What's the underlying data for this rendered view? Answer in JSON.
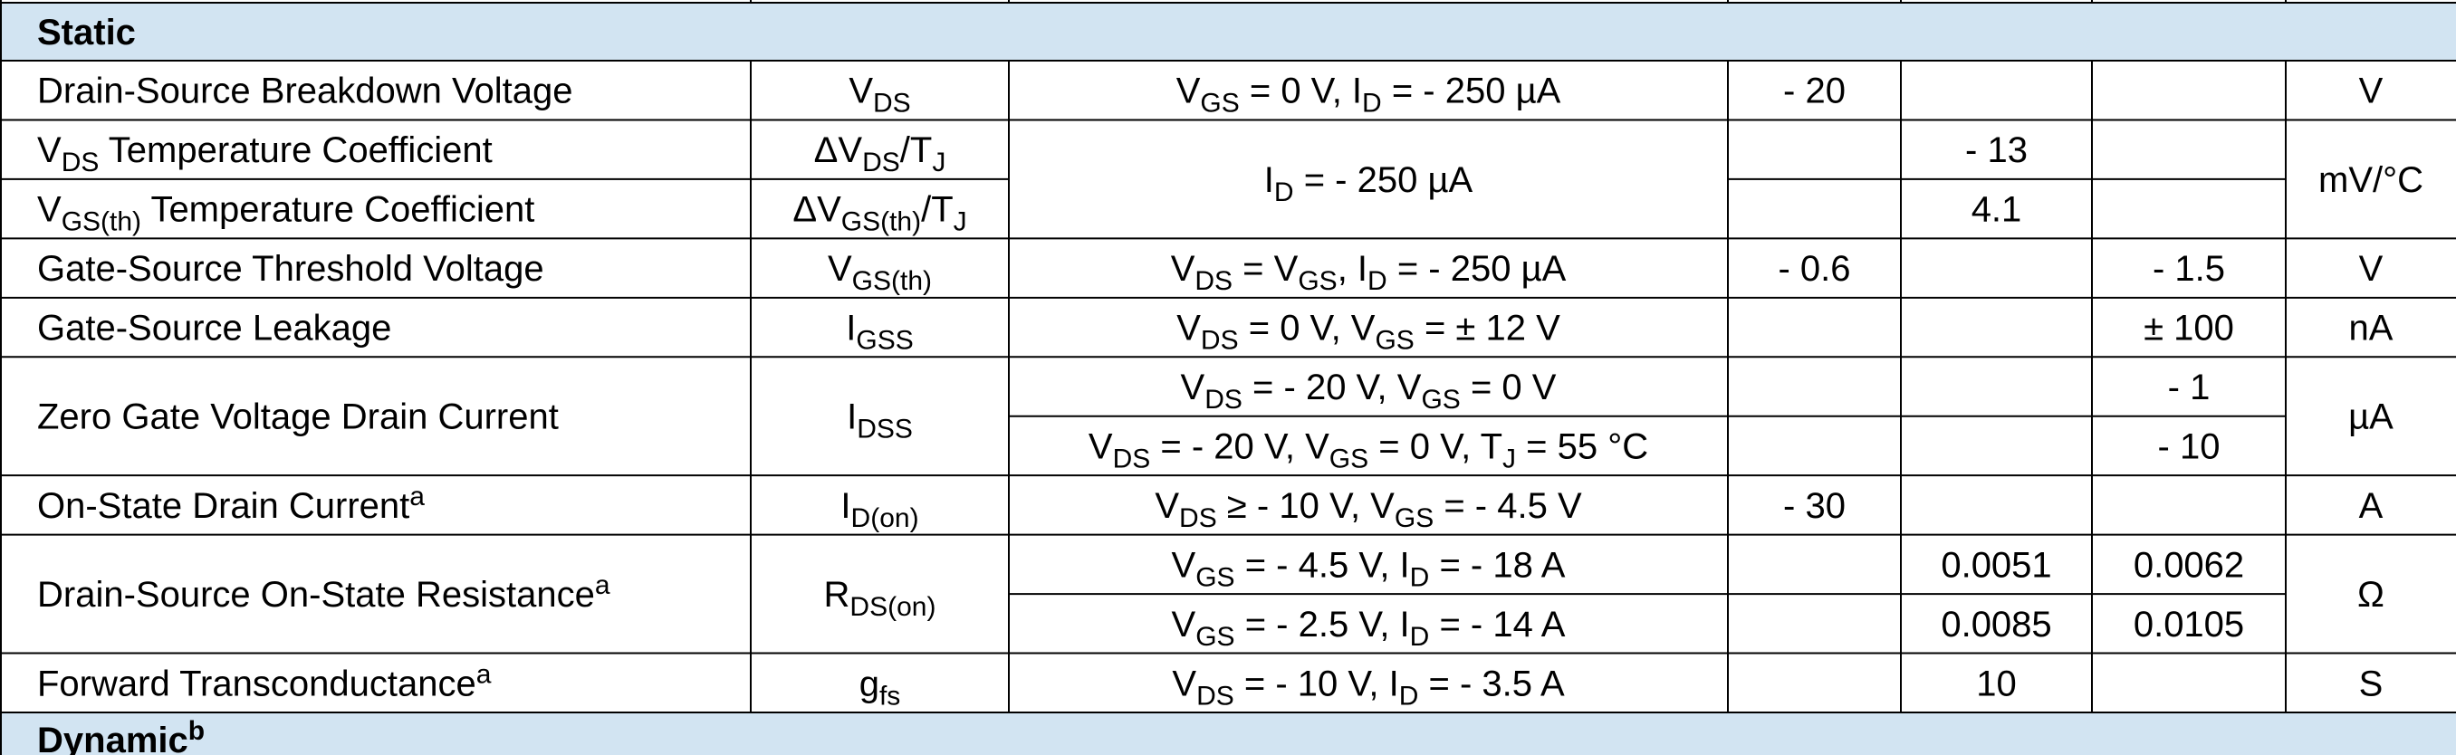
{
  "table": {
    "top_section": [
      "Static"
    ],
    "groups": [
      {
        "parameter": [
          [
            "Drain-Source Breakdown Voltage"
          ]
        ],
        "symbol": [
          [
            "V",
            {
              "sub": "DS"
            }
          ]
        ],
        "conditions": [
          [
            "V",
            {
              "sub": "GS"
            },
            " = 0 V, I",
            {
              "sub": "D"
            },
            " = - 250 µA"
          ]
        ],
        "min": [
          [
            "- 20"
          ]
        ],
        "typ": [
          null
        ],
        "max": [
          null
        ],
        "unit": [
          [
            "V"
          ]
        ]
      },
      {
        "parameter": [
          [
            "V",
            {
              "sub": "DS"
            },
            " Temperature Coefficient"
          ],
          [
            "V",
            {
              "sub": "GS(th)"
            },
            " Temperature Coefficient"
          ]
        ],
        "symbol": [
          [
            "ΔV",
            {
              "sub": "DS"
            },
            "/T",
            {
              "sub": "J"
            }
          ],
          [
            "ΔV",
            {
              "sub": "GS(th)"
            },
            "/T",
            {
              "sub": "J"
            }
          ]
        ],
        "conditions": [
          [
            "I",
            {
              "sub": "D"
            },
            " = - 250 µA"
          ]
        ],
        "min": [
          null,
          null
        ],
        "typ": [
          [
            "- 13"
          ],
          [
            "4.1"
          ]
        ],
        "max": [
          null,
          null
        ],
        "unit": [
          [
            "mV/°C"
          ]
        ]
      },
      {
        "parameter": [
          [
            "Gate-Source Threshold Voltage"
          ]
        ],
        "symbol": [
          [
            "V",
            {
              "sub": "GS(th)"
            }
          ]
        ],
        "conditions": [
          [
            "V",
            {
              "sub": "DS"
            },
            " = V",
            {
              "sub": "GS"
            },
            ", I",
            {
              "sub": "D"
            },
            " = - 250 µA"
          ]
        ],
        "min": [
          [
            "- 0.6"
          ]
        ],
        "typ": [
          null
        ],
        "max": [
          [
            "- 1.5"
          ]
        ],
        "unit": [
          [
            "V"
          ]
        ]
      },
      {
        "parameter": [
          [
            "Gate-Source Leakage"
          ]
        ],
        "symbol": [
          [
            "I",
            {
              "sub": "GSS"
            }
          ]
        ],
        "conditions": [
          [
            "V",
            {
              "sub": "DS"
            },
            " = 0 V, V",
            {
              "sub": "GS"
            },
            " = ± 12 V"
          ]
        ],
        "min": [
          null
        ],
        "typ": [
          null
        ],
        "max": [
          [
            "± 100"
          ]
        ],
        "unit": [
          [
            "nA"
          ]
        ]
      },
      {
        "parameter": [
          [
            "Zero Gate Voltage Drain Current"
          ]
        ],
        "symbol": [
          [
            "I",
            {
              "sub": "DSS"
            }
          ]
        ],
        "conditions": [
          [
            "V",
            {
              "sub": "DS"
            },
            " = - 20 V, V",
            {
              "sub": "GS"
            },
            " = 0 V"
          ],
          [
            "V",
            {
              "sub": "DS"
            },
            " = - 20 V, V",
            {
              "sub": "GS"
            },
            " = 0 V, T",
            {
              "sub": "J"
            },
            " = 55 °C"
          ]
        ],
        "min": [
          null,
          null
        ],
        "typ": [
          null,
          null
        ],
        "max": [
          [
            "- 1"
          ],
          [
            "- 10"
          ]
        ],
        "unit": [
          [
            "µA"
          ]
        ]
      },
      {
        "parameter": [
          [
            "On-State Drain Current",
            {
              "sup": "a"
            }
          ]
        ],
        "symbol": [
          [
            "I",
            {
              "sub": "D(on)"
            }
          ]
        ],
        "conditions": [
          [
            "V",
            {
              "sub": "DS"
            },
            " ≥ - 10 V, V",
            {
              "sub": "GS"
            },
            " = - 4.5 V"
          ]
        ],
        "min": [
          [
            "- 30"
          ]
        ],
        "typ": [
          null
        ],
        "max": [
          null
        ],
        "unit": [
          [
            "A"
          ]
        ]
      },
      {
        "parameter": [
          [
            "Drain-Source On-State Resistance",
            {
              "sup": "a"
            }
          ]
        ],
        "symbol": [
          [
            "R",
            {
              "sub": "DS(on)"
            }
          ]
        ],
        "conditions": [
          [
            "V",
            {
              "sub": "GS"
            },
            " = - 4.5 V, I",
            {
              "sub": "D"
            },
            " = - 18 A"
          ],
          [
            "V",
            {
              "sub": "GS"
            },
            " = - 2.5 V, I",
            {
              "sub": "D"
            },
            " = - 14 A"
          ]
        ],
        "min": [
          null,
          null
        ],
        "typ": [
          [
            "0.0051"
          ],
          [
            "0.0085"
          ]
        ],
        "max": [
          [
            "0.0062"
          ],
          [
            "0.0105"
          ]
        ],
        "unit": [
          [
            "Ω"
          ]
        ]
      },
      {
        "parameter": [
          [
            "Forward Transconductance",
            {
              "sup": "a"
            }
          ]
        ],
        "symbol": [
          [
            "g",
            {
              "sub": "fs"
            }
          ]
        ],
        "conditions": [
          [
            "V",
            {
              "sub": "DS"
            },
            " = - 10 V, I",
            {
              "sub": "D"
            },
            " = - 3.5 A"
          ]
        ],
        "min": [
          null
        ],
        "typ": [
          [
            "10"
          ]
        ],
        "max": [
          null
        ],
        "unit": [
          [
            "S"
          ]
        ]
      }
    ],
    "bottom_section": [
      "Dynamic",
      {
        "sup": "b"
      }
    ]
  }
}
